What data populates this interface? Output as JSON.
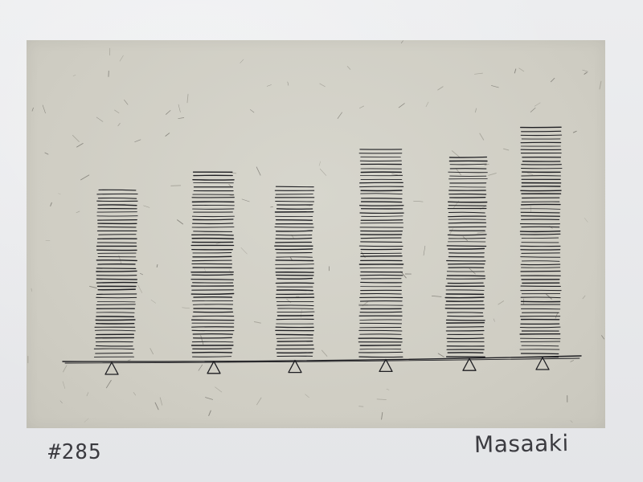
{
  "artwork": {
    "print_number": "#285",
    "signature": "Masaaki",
    "paper_color": "#e9eaec",
    "print_color": "#cfcdc3",
    "ink_color": "#1e1e22",
    "stack_count": 6,
    "stack_heights_relative": [
      0.74,
      0.82,
      0.76,
      0.91,
      0.88,
      1.0
    ]
  }
}
